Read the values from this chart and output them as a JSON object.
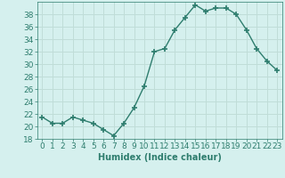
{
  "x": [
    0,
    1,
    2,
    3,
    4,
    5,
    6,
    7,
    8,
    9,
    10,
    11,
    12,
    13,
    14,
    15,
    16,
    17,
    18,
    19,
    20,
    21,
    22,
    23
  ],
  "y": [
    21.5,
    20.5,
    20.5,
    21.5,
    21.0,
    20.5,
    19.5,
    18.5,
    20.5,
    23.0,
    26.5,
    32.0,
    32.5,
    35.5,
    37.5,
    39.5,
    38.5,
    39.0,
    39.0,
    38.0,
    35.5,
    32.5,
    30.5,
    29.0
  ],
  "line_color": "#2e7d6e",
  "marker": "+",
  "marker_size": 5,
  "linewidth": 1.0,
  "xlabel": "Humidex (Indice chaleur)",
  "ylim": [
    18,
    40
  ],
  "yticks": [
    18,
    20,
    22,
    24,
    26,
    28,
    30,
    32,
    34,
    36,
    38
  ],
  "xticks": [
    0,
    1,
    2,
    3,
    4,
    5,
    6,
    7,
    8,
    9,
    10,
    11,
    12,
    13,
    14,
    15,
    16,
    17,
    18,
    19,
    20,
    21,
    22,
    23
  ],
  "xtick_labels": [
    "0",
    "1",
    "2",
    "3",
    "4",
    "5",
    "6",
    "7",
    "8",
    "9",
    "10",
    "11",
    "12",
    "13",
    "14",
    "15",
    "16",
    "17",
    "18",
    "19",
    "20",
    "21",
    "22",
    "23"
  ],
  "bg_color": "#d5f0ee",
  "grid_color": "#c0ddd8",
  "text_color": "#2e7d6e",
  "xlabel_fontsize": 7,
  "tick_fontsize": 6.5
}
